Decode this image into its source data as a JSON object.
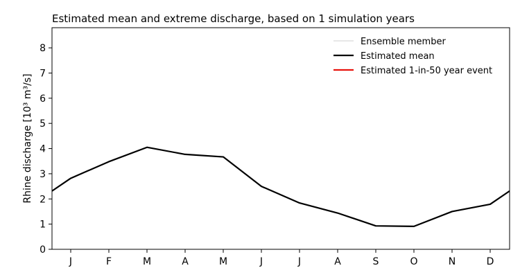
{
  "chart_data": {
    "type": "line",
    "title": "Estimated mean and extreme discharge, based on 1 simulation years",
    "ylabel": "Rhine discharge [10³ m³/s]",
    "xlabel": "",
    "ylim": [
      0,
      8.8
    ],
    "yticks": [
      0,
      1,
      2,
      3,
      4,
      5,
      6,
      7,
      8
    ],
    "categories": [
      "J",
      "F",
      "M",
      "A",
      "M",
      "J",
      "J",
      "A",
      "S",
      "O",
      "N",
      "D"
    ],
    "series": [
      {
        "name": "Estimated mean",
        "color": "#000000",
        "values": [
          2.82,
          3.48,
          4.05,
          3.77,
          3.67,
          2.5,
          1.84,
          1.44,
          0.93,
          0.91,
          1.5,
          1.79
        ]
      }
    ],
    "wrap": {
      "dec_end": 2.3
    },
    "legend": {
      "position": "top-right",
      "entries": [
        {
          "label": "Ensemble member",
          "color": "#bfbfbf",
          "style": "thin"
        },
        {
          "label": "Estimated mean",
          "color": "#000000",
          "style": "thick"
        },
        {
          "label": "Estimated 1-in-50 year event",
          "color": "#e8120c",
          "style": "thick"
        }
      ]
    },
    "grid": false
  }
}
